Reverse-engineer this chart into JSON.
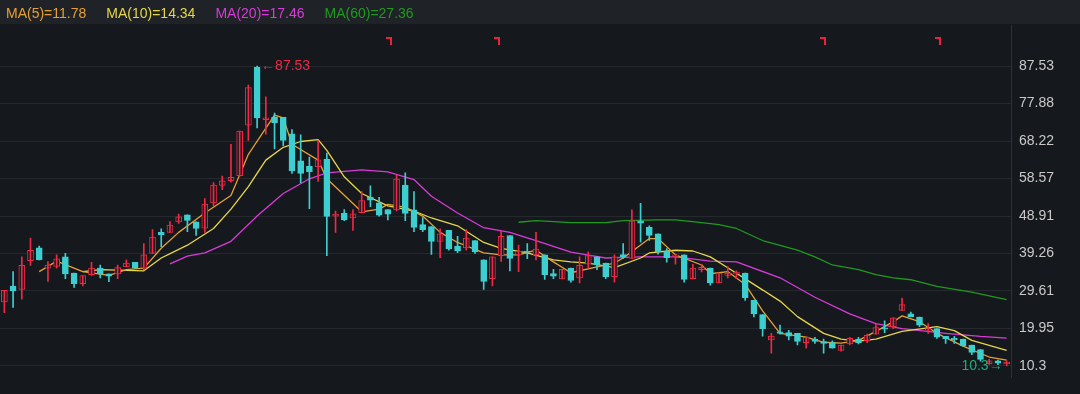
{
  "chart_data": {
    "type": "candlestick",
    "categories": [
      null,
      null,
      null,
      null,
      null,
      null,
      null,
      null,
      null,
      null,
      null,
      null,
      null,
      null,
      null,
      null,
      null,
      null,
      null,
      null,
      null,
      null,
      null,
      null,
      null,
      null,
      null,
      null,
      null,
      null,
      null,
      null,
      null,
      null,
      null,
      null,
      null,
      null,
      null,
      null,
      null,
      null,
      null,
      null,
      null,
      null,
      null,
      null,
      null,
      null,
      null,
      null,
      null,
      null,
      null,
      null,
      null,
      null,
      null,
      null,
      null,
      null,
      null,
      null,
      null,
      null,
      null,
      null,
      null,
      null,
      null,
      null,
      null,
      null,
      null,
      null,
      null,
      null,
      null,
      null,
      null,
      null,
      null,
      null,
      null,
      null,
      null,
      null,
      null,
      null,
      null,
      null,
      null,
      null,
      null,
      null,
      null,
      null,
      null,
      null,
      null,
      null,
      null,
      null,
      null,
      null,
      null,
      null,
      null,
      null,
      null,
      null,
      null,
      null,
      null,
      null
    ],
    "ohlc": [
      [
        26.8,
        29.8,
        24.0,
        29.8
      ],
      [
        30.9,
        34.6,
        25.4,
        29.6
      ],
      [
        30.0,
        38.4,
        27.5,
        36.2
      ],
      [
        37.4,
        43.2,
        36.2,
        40.1
      ],
      [
        40.7,
        41.2,
        37.6,
        37.6
      ],
      [
        35.5,
        37.2,
        32.1,
        36.3
      ],
      [
        35.9,
        38.9,
        35.5,
        37.9
      ],
      [
        38.4,
        39.3,
        32.8,
        34.0
      ],
      [
        34.2,
        34.2,
        30.5,
        31.5
      ],
      [
        31.5,
        33.6,
        30.9,
        33.6
      ],
      [
        33.8,
        37.0,
        33.6,
        35.5
      ],
      [
        35.5,
        36.3,
        33.0,
        34.0
      ],
      [
        34.0,
        34.0,
        32.0,
        33.4
      ],
      [
        34.0,
        36.3,
        32.8,
        35.6
      ],
      [
        35.8,
        37.6,
        35.8,
        36.8
      ],
      [
        37.0,
        37.0,
        35.5,
        35.5
      ],
      [
        35.5,
        41.8,
        35.1,
        38.9
      ],
      [
        39.3,
        45.4,
        39.3,
        43.5
      ],
      [
        44.7,
        45.6,
        41.0,
        44.1
      ],
      [
        44.7,
        47.5,
        44.7,
        46.6
      ],
      [
        47.4,
        49.4,
        47.0,
        48.7
      ],
      [
        49.2,
        49.2,
        44.9,
        47.8
      ],
      [
        47.4,
        47.4,
        43.9,
        45.7
      ],
      [
        45.8,
        53.4,
        44.7,
        52.0
      ],
      [
        52.3,
        57.5,
        51.5,
        56.9
      ],
      [
        56.8,
        59.2,
        55.7,
        58.0
      ],
      [
        58.0,
        67.4,
        57.6,
        58.9
      ],
      [
        59.3,
        70.8,
        59.2,
        70.8
      ],
      [
        72.3,
        82.6,
        68.4,
        82.0
      ],
      [
        87.2,
        87.53,
        71.6,
        74.2
      ],
      [
        73.7,
        79.6,
        70.0,
        74.2
      ],
      [
        74.3,
        75.4,
        66.2,
        72.9
      ],
      [
        74.3,
        74.3,
        67.0,
        68.4
      ],
      [
        70.1,
        71.2,
        59.9,
        60.5
      ],
      [
        63.1,
        69.8,
        57.5,
        59.9
      ],
      [
        61.7,
        64.1,
        50.8,
        60.3
      ],
      [
        61.6,
        68.3,
        57.8,
        63.4
      ],
      [
        63.6,
        65.1,
        38.7,
        48.8
      ],
      [
        48.9,
        50.2,
        44.7,
        49.4
      ],
      [
        49.6,
        50.6,
        47.7,
        47.9
      ],
      [
        48.4,
        50.6,
        45.2,
        49.5
      ],
      [
        49.8,
        55.2,
        49.8,
        52.9
      ],
      [
        53.8,
        56.7,
        51.3,
        53.0
      ],
      [
        52.3,
        53.7,
        48.9,
        49.1
      ],
      [
        50.6,
        50.6,
        47.9,
        49.4
      ],
      [
        50.5,
        59.5,
        50.2,
        58.4
      ],
      [
        56.9,
        60.0,
        47.7,
        49.6
      ],
      [
        50.5,
        55.2,
        44.9,
        46.0
      ],
      [
        46.7,
        48.5,
        44.9,
        45.4
      ],
      [
        46.2,
        46.2,
        39.0,
        42.4
      ],
      [
        42.4,
        45.6,
        38.2,
        44.3
      ],
      [
        45.2,
        45.2,
        40.1,
        40.5
      ],
      [
        41.2,
        43.7,
        39.5,
        39.9
      ],
      [
        40.7,
        45.4,
        40.1,
        43.2
      ],
      [
        42.6,
        42.6,
        39.3,
        39.7
      ],
      [
        37.6,
        37.6,
        30.0,
        32.1
      ],
      [
        32.8,
        38.4,
        30.9,
        38.4
      ],
      [
        38.7,
        45.0,
        37.2,
        43.7
      ],
      [
        43.9,
        43.9,
        34.8,
        38.0
      ],
      [
        38.9,
        41.4,
        34.6,
        39.9
      ],
      [
        39.9,
        41.8,
        37.9,
        39.6
      ],
      [
        38.9,
        44.7,
        37.6,
        40.4
      ],
      [
        38.9,
        38.9,
        32.6,
        33.8
      ],
      [
        34.1,
        35.2,
        32.8,
        33.4
      ],
      [
        32.7,
        35.2,
        32.7,
        35.2
      ],
      [
        35.5,
        35.5,
        31.9,
        32.3
      ],
      [
        33.0,
        38.4,
        31.7,
        36.2
      ],
      [
        36.5,
        39.7,
        35.5,
        38.7
      ],
      [
        38.4,
        38.4,
        35.1,
        36.3
      ],
      [
        36.8,
        36.8,
        32.8,
        33.3
      ],
      [
        33.3,
        38.9,
        31.9,
        38.4
      ],
      [
        39.0,
        41.8,
        38.0,
        38.4
      ],
      [
        38.0,
        50.5,
        38.0,
        47.7
      ],
      [
        47.7,
        52.2,
        42.2,
        47.1
      ],
      [
        46.0,
        46.4,
        42.6,
        43.9
      ],
      [
        44.3,
        44.3,
        39.1,
        39.7
      ],
      [
        39.9,
        40.5,
        37.0,
        38.2
      ],
      [
        38.5,
        38.9,
        36.5,
        38.9
      ],
      [
        38.9,
        38.9,
        31.9,
        32.6
      ],
      [
        32.8,
        36.5,
        32.8,
        35.5
      ],
      [
        35.1,
        36.5,
        34.5,
        35.7
      ],
      [
        35.5,
        35.5,
        31.1,
        31.7
      ],
      [
        31.7,
        34.2,
        31.7,
        34.2
      ],
      [
        33.6,
        35.9,
        33.0,
        34.2
      ],
      [
        34.0,
        34.8,
        32.8,
        34.4
      ],
      [
        34.2,
        34.2,
        27.2,
        27.9
      ],
      [
        27.2,
        27.2,
        22.9,
        23.7
      ],
      [
        23.5,
        23.5,
        18.0,
        19.9
      ],
      [
        17.0,
        18.7,
        13.6,
        18.0
      ],
      [
        19.1,
        20.8,
        18.5,
        18.7
      ],
      [
        18.9,
        19.5,
        17.0,
        18.0
      ],
      [
        18.7,
        18.7,
        15.7,
        16.6
      ],
      [
        16.3,
        17.7,
        14.9,
        17.7
      ],
      [
        17.2,
        17.7,
        16.1,
        16.6
      ],
      [
        16.6,
        17.2,
        13.6,
        16.1
      ],
      [
        16.3,
        16.8,
        14.9,
        14.9
      ],
      [
        14.3,
        15.7,
        14.1,
        15.7
      ],
      [
        16.0,
        17.7,
        15.7,
        17.4
      ],
      [
        17.2,
        17.7,
        16.0,
        16.3
      ],
      [
        16.8,
        18.5,
        16.3,
        18.2
      ],
      [
        18.5,
        21.0,
        18.5,
        20.2
      ],
      [
        20.1,
        21.9,
        18.9,
        19.8
      ],
      [
        20.4,
        22.7,
        19.9,
        22.7
      ],
      [
        24.6,
        27.8,
        24.6,
        26.1
      ],
      [
        23.7,
        24.2,
        22.9,
        22.9
      ],
      [
        22.9,
        22.9,
        20.4,
        20.8
      ],
      [
        19.5,
        21.2,
        18.7,
        19.9
      ],
      [
        19.9,
        19.9,
        17.4,
        17.7
      ],
      [
        17.9,
        17.9,
        16.1,
        17.3
      ],
      [
        17.4,
        17.9,
        16.1,
        17.0
      ],
      [
        17.2,
        17.2,
        15.3,
        15.5
      ],
      [
        15.7,
        15.7,
        13.2,
        13.8
      ],
      [
        14.5,
        14.5,
        11.5,
        12.0
      ],
      [
        10.9,
        12.0,
        10.7,
        11.6
      ],
      [
        11.6,
        11.8,
        10.6,
        11.0
      ],
      [
        10.8,
        11.6,
        10.3,
        11.3
      ]
    ],
    "colors": [
      "#ee2a45",
      "#3dcfd0",
      "#ee2a45",
      "#ee2a45",
      "#3dcfd0",
      "#ee2a45",
      "#ee2a45",
      "#3dcfd0",
      "#3dcfd0",
      "#ee2a45",
      "#ee2a45",
      "#3dcfd0",
      "#3dcfd0",
      "#ee2a45",
      "#ee2a45",
      "#3dcfd0",
      "#ee2a45",
      "#ee2a45",
      "#3dcfd0",
      "#ee2a45",
      "#ee2a45",
      "#3dcfd0",
      "#3dcfd0",
      "#ee2a45",
      "#ee2a45",
      "#ee2a45",
      "#ee2a45",
      "#ee2a45",
      "#ee2a45",
      "#3dcfd0",
      "#ee2a45",
      "#3dcfd0",
      "#3dcfd0",
      "#3dcfd0",
      "#3dcfd0",
      "#3dcfd0",
      "#ee2a45",
      "#3dcfd0",
      "#ee2a45",
      "#3dcfd0",
      "#ee2a45",
      "#ee2a45",
      "#3dcfd0",
      "#3dcfd0",
      "#3dcfd0",
      "#ee2a45",
      "#3dcfd0",
      "#3dcfd0",
      "#3dcfd0",
      "#3dcfd0",
      "#ee2a45",
      "#3dcfd0",
      "#3dcfd0",
      "#ee2a45",
      "#3dcfd0",
      "#3dcfd0",
      "#ee2a45",
      "#ee2a45",
      "#3dcfd0",
      "#ee2a45",
      "#3dcfd0",
      "#ee2a45",
      "#3dcfd0",
      "#3dcfd0",
      "#ee2a45",
      "#3dcfd0",
      "#ee2a45",
      "#ee2a45",
      "#3dcfd0",
      "#3dcfd0",
      "#ee2a45",
      "#3dcfd0",
      "#ee2a45",
      "#3dcfd0",
      "#3dcfd0",
      "#3dcfd0",
      "#3dcfd0",
      "#ee2a45",
      "#3dcfd0",
      "#ee2a45",
      "#ee2a45",
      "#3dcfd0",
      "#ee2a45",
      "#ee2a45",
      "#ee2a45",
      "#3dcfd0",
      "#3dcfd0",
      "#3dcfd0",
      "#ee2a45",
      "#3dcfd0",
      "#3dcfd0",
      "#3dcfd0",
      "#ee2a45",
      "#3dcfd0",
      "#3dcfd0",
      "#3dcfd0",
      "#ee2a45",
      "#ee2a45",
      "#3dcfd0",
      "#ee2a45",
      "#ee2a45",
      "#3dcfd0",
      "#ee2a45",
      "#ee2a45",
      "#3dcfd0",
      "#3dcfd0",
      "#ee2a45",
      "#3dcfd0",
      "#3dcfd0",
      "#3dcfd0",
      "#3dcfd0",
      "#3dcfd0",
      "#3dcfd0",
      "#ee2a45",
      "#3dcfd0",
      "#ee2a45"
    ],
    "series": [
      {
        "name": "MA(5)=11.78",
        "type": "line",
        "color": "#e8a033",
        "values": [
          null,
          null,
          null,
          null,
          34.6,
          null,
          37.3,
          null,
          null,
          34.6,
          null,
          null,
          33.6,
          null,
          35.1,
          null,
          35.5,
          null,
          40.6,
          null,
          44.7,
          null,
          null,
          49.7,
          null,
          null,
          54.2,
          null,
          64.8,
          null,
          null,
          74.9,
          74.2,
          67.4,
          null,
          null,
          63.3,
          58.5,
          null,
          null,
          null,
          50.0,
          null,
          50.7,
          51.9,
          null,
          51.2,
          null,
          48.9,
          null,
          44.7,
          null,
          42.1,
          null,
          null,
          39.4,
          null,
          38.9,
          null,
          38.9,
          null,
          40.1,
          null,
          37.1,
          null,
          34.3,
          null,
          null,
          35.8,
          null,
          36.8,
          38.1,
          null,
          null,
          43.1,
          43.1,
          null,
          38.9,
          null,
          null,
          36.3,
          34.1,
          34.3,
          34.6,
          null,
          31.3,
          null,
          24.5,
          null,
          18.7,
          null,
          null,
          17.7,
          null,
          16.4,
          null,
          16.2,
          null,
          16.9,
          null,
          19.2,
          null,
          21.7,
          23.2,
          null,
          21.7,
          null,
          18.7,
          null,
          null,
          15.4,
          null,
          null,
          12.6,
          null,
          11.78
        ]
      },
      {
        "name": "MA(10)=14.34",
        "type": "line",
        "color": "#e6d64a",
        "values": [
          null,
          null,
          null,
          null,
          null,
          null,
          null,
          null,
          null,
          34.6,
          null,
          35.1,
          null,
          null,
          null,
          null,
          34.8,
          null,
          38.1,
          null,
          null,
          41.4,
          null,
          null,
          45.7,
          null,
          50.7,
          null,
          56.5,
          null,
          63.3,
          null,
          66.6,
          null,
          68.1,
          null,
          68.6,
          65.8,
          null,
          59.0,
          null,
          54.7,
          null,
          null,
          51.5,
          null,
          null,
          50.2,
          null,
          48.4,
          null,
          null,
          46.4,
          null,
          null,
          42.1,
          null,
          40.6,
          null,
          null,
          39.4,
          null,
          null,
          37.6,
          null,
          37.1,
          null,
          36.8,
          null,
          null,
          35.6,
          null,
          null,
          38.1,
          39.4,
          null,
          null,
          40.1,
          null,
          39.9,
          null,
          38.4,
          null,
          35.6,
          null,
          null,
          31.3,
          null,
          null,
          27.0,
          null,
          23.0,
          null,
          null,
          18.7,
          null,
          17.2,
          null,
          16.7,
          null,
          17.2,
          null,
          null,
          19.2,
          null,
          null,
          null,
          20.4,
          null,
          19.4,
          null,
          16.9,
          null,
          null,
          null,
          14.34
        ]
      },
      {
        "name": "MA(20)=17.46",
        "type": "line",
        "color": "#d93ad9",
        "values": [
          null,
          null,
          null,
          null,
          null,
          null,
          null,
          null,
          null,
          null,
          null,
          null,
          null,
          null,
          null,
          null,
          null,
          null,
          null,
          36.6,
          null,
          38.6,
          null,
          39.4,
          null,
          null,
          42.4,
          null,
          null,
          48.9,
          null,
          null,
          54.7,
          null,
          null,
          58.5,
          null,
          60.0,
          null,
          null,
          null,
          60.8,
          null,
          null,
          60.3,
          null,
          null,
          58.3,
          null,
          54.0,
          null,
          null,
          49.7,
          null,
          null,
          45.9,
          null,
          null,
          44.7,
          null,
          null,
          42.6,
          null,
          null,
          null,
          39.6,
          null,
          null,
          null,
          38.1,
          null,
          null,
          null,
          38.4,
          null,
          null,
          null,
          38.4,
          null,
          null,
          null,
          37.3,
          null,
          null,
          37.1,
          null,
          null,
          null,
          null,
          33.0,
          null,
          null,
          null,
          28.0,
          null,
          null,
          null,
          23.7,
          null,
          null,
          21.2,
          null,
          null,
          19.9,
          null,
          null,
          null,
          null,
          18.7,
          null,
          null,
          null,
          17.9,
          null,
          null,
          17.46
        ]
      },
      {
        "name": "MA(60)=27.36",
        "type": "line",
        "color": "#1f9a1f",
        "values": [
          null,
          null,
          null,
          null,
          null,
          null,
          null,
          null,
          null,
          null,
          null,
          null,
          null,
          null,
          null,
          null,
          null,
          null,
          null,
          null,
          null,
          null,
          null,
          null,
          null,
          null,
          null,
          null,
          null,
          null,
          null,
          null,
          null,
          null,
          null,
          null,
          null,
          null,
          null,
          null,
          null,
          null,
          null,
          null,
          null,
          null,
          null,
          null,
          null,
          null,
          null,
          null,
          null,
          null,
          null,
          null,
          null,
          null,
          null,
          47.3,
          null,
          47.7,
          null,
          null,
          null,
          47.2,
          null,
          null,
          null,
          47.2,
          null,
          47.7,
          null,
          null,
          null,
          47.9,
          null,
          47.9,
          null,
          null,
          47.2,
          null,
          46.7,
          null,
          45.7,
          null,
          null,
          42.6,
          null,
          null,
          null,
          40.1,
          null,
          38.4,
          null,
          36.3,
          null,
          null,
          35.1,
          null,
          33.8,
          null,
          33.0,
          null,
          32.5,
          null,
          null,
          30.8,
          null,
          null,
          null,
          29.3,
          null,
          null,
          null,
          27.36
        ]
      }
    ],
    "ylim": [
      7.3,
      98.1
    ],
    "yticks": [
      10.3,
      19.95,
      29.61,
      39.26,
      48.91,
      58.57,
      68.22,
      77.88,
      87.53
    ],
    "annotations": [
      "←87.53",
      "10.3→"
    ],
    "grid": "y",
    "legend": "top left",
    "tick_labels": "y",
    "marker": "none"
  }
}
